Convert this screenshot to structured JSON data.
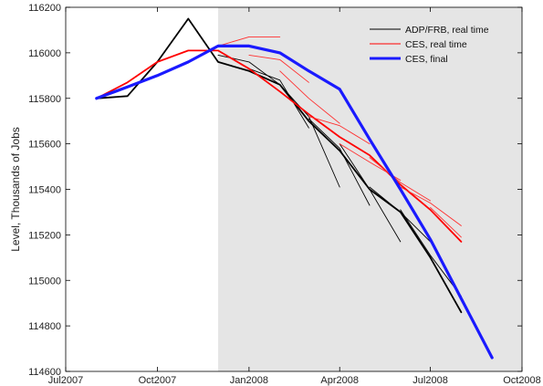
{
  "chart_data": {
    "type": "line",
    "title": "",
    "xlabel": "",
    "ylabel": "Level, Thousands of Jobs",
    "xlim": [
      "2007-07-01",
      "2008-10-01"
    ],
    "ylim": [
      114600,
      116200
    ],
    "xticks": [
      {
        "date": "2007-07-01",
        "label": "Jul2007"
      },
      {
        "date": "2007-10-01",
        "label": "Oct2007"
      },
      {
        "date": "2008-01-01",
        "label": "Jan2008"
      },
      {
        "date": "2008-04-01",
        "label": "Apr2008"
      },
      {
        "date": "2008-07-01",
        "label": "Jul2008"
      },
      {
        "date": "2008-10-01",
        "label": "Oct2008"
      }
    ],
    "yticks": [
      114600,
      114800,
      115000,
      115200,
      115400,
      115600,
      115800,
      116000,
      116200
    ],
    "grid": false,
    "legend_position": "top-right",
    "shaded_region": {
      "from": "2007-12-01",
      "to": "2008-10-01",
      "color": "#e5e5e5"
    },
    "series": [
      {
        "name": "ADP/FRB, real time",
        "color": "#000000",
        "width": 1.8,
        "segments": [
          [
            [
              "2007-08-01",
              115800
            ],
            [
              "2007-09-01",
              115810
            ],
            [
              "2007-10-01",
              115960
            ],
            [
              "2007-11-01",
              116150
            ],
            [
              "2007-12-01",
              115960
            ],
            [
              "2008-01-01",
              115920
            ],
            [
              "2008-02-01",
              115860
            ],
            [
              "2008-03-01",
              115700
            ],
            [
              "2008-04-01",
              115570
            ],
            [
              "2008-05-01",
              115400
            ],
            [
              "2008-06-01",
              115300
            ],
            [
              "2008-07-01",
              115100
            ],
            [
              "2008-08-01",
              114860
            ]
          ]
        ]
      },
      {
        "name": "ADP/FRB, real time",
        "color": "#000000",
        "width": 0.9,
        "segments": [
          [
            [
              "2007-12-01",
              115990
            ],
            [
              "2008-01-01",
              115960
            ],
            [
              "2008-02-01",
              115860
            ]
          ],
          [
            [
              "2008-01-01",
              115930
            ],
            [
              "2008-02-01",
              115880
            ],
            [
              "2008-03-01",
              115670
            ]
          ],
          [
            [
              "2008-02-01",
              115860
            ],
            [
              "2008-03-01",
              115720
            ],
            [
              "2008-04-01",
              115410
            ]
          ],
          [
            [
              "2008-03-01",
              115710
            ],
            [
              "2008-04-01",
              115580
            ],
            [
              "2008-05-01",
              115330
            ]
          ],
          [
            [
              "2008-04-01",
              115600
            ],
            [
              "2008-05-01",
              115400
            ],
            [
              "2008-06-01",
              115170
            ]
          ],
          [
            [
              "2008-05-01",
              115410
            ],
            [
              "2008-06-01",
              115300
            ],
            [
              "2008-07-01",
              115170
            ]
          ],
          [
            [
              "2008-06-01",
              115310
            ],
            [
              "2008-07-01",
              115110
            ],
            [
              "2008-08-01",
              114930
            ]
          ]
        ]
      },
      {
        "name": "CES, real time",
        "color": "#ff0000",
        "width": 1.8,
        "segments": [
          [
            [
              "2007-08-01",
              115800
            ],
            [
              "2007-09-01",
              115870
            ],
            [
              "2007-10-01",
              115960
            ],
            [
              "2007-11-01",
              116010
            ],
            [
              "2007-12-01",
              116010
            ],
            [
              "2008-01-01",
              115930
            ],
            [
              "2008-02-01",
              115830
            ],
            [
              "2008-03-01",
              115730
            ],
            [
              "2008-04-01",
              115630
            ],
            [
              "2008-05-01",
              115550
            ],
            [
              "2008-06-01",
              115420
            ],
            [
              "2008-07-01",
              115310
            ],
            [
              "2008-08-01",
              115170
            ]
          ]
        ]
      },
      {
        "name": "CES, real time",
        "color": "#ff3030",
        "width": 0.9,
        "segments": [
          [
            [
              "2007-12-01",
              116030
            ],
            [
              "2008-01-01",
              116070
            ],
            [
              "2008-02-01",
              116070
            ]
          ],
          [
            [
              "2008-01-01",
              115990
            ],
            [
              "2008-02-01",
              115970
            ],
            [
              "2008-03-01",
              115870
            ]
          ],
          [
            [
              "2008-02-01",
              115920
            ],
            [
              "2008-03-01",
              115800
            ],
            [
              "2008-04-01",
              115690
            ]
          ],
          [
            [
              "2008-03-01",
              115720
            ],
            [
              "2008-04-01",
              115680
            ],
            [
              "2008-05-01",
              115600
            ]
          ],
          [
            [
              "2008-04-01",
              115600
            ],
            [
              "2008-05-01",
              115520
            ],
            [
              "2008-06-01",
              115440
            ]
          ],
          [
            [
              "2008-05-01",
              115540
            ],
            [
              "2008-06-01",
              115430
            ],
            [
              "2008-07-01",
              115350
            ]
          ],
          [
            [
              "2008-06-01",
              115410
            ],
            [
              "2008-07-01",
              115340
            ],
            [
              "2008-08-01",
              115240
            ]
          ],
          [
            [
              "2008-07-01",
              115320
            ],
            [
              "2008-08-01",
              115190
            ]
          ]
        ]
      },
      {
        "name": "CES, final",
        "color": "#1a1aff",
        "width": 3.2,
        "segments": [
          [
            [
              "2007-08-01",
              115800
            ],
            [
              "2007-09-01",
              115850
            ],
            [
              "2007-10-01",
              115900
            ],
            [
              "2007-11-01",
              115960
            ],
            [
              "2007-12-01",
              116030
            ],
            [
              "2008-01-01",
              116030
            ],
            [
              "2008-02-01",
              116000
            ],
            [
              "2008-03-01",
              115920
            ],
            [
              "2008-04-01",
              115840
            ],
            [
              "2008-05-01",
              115620
            ],
            [
              "2008-06-01",
              115400
            ],
            [
              "2008-07-01",
              115180
            ],
            [
              "2008-08-01",
              114920
            ],
            [
              "2008-09-01",
              114660
            ]
          ]
        ]
      }
    ],
    "legend": [
      {
        "label": "ADP/FRB, real time",
        "color": "#000000",
        "width": 1
      },
      {
        "label": "CES, real time",
        "color": "#ff0000",
        "width": 1
      },
      {
        "label": "CES, final",
        "color": "#1a1aff",
        "width": 3
      }
    ]
  }
}
